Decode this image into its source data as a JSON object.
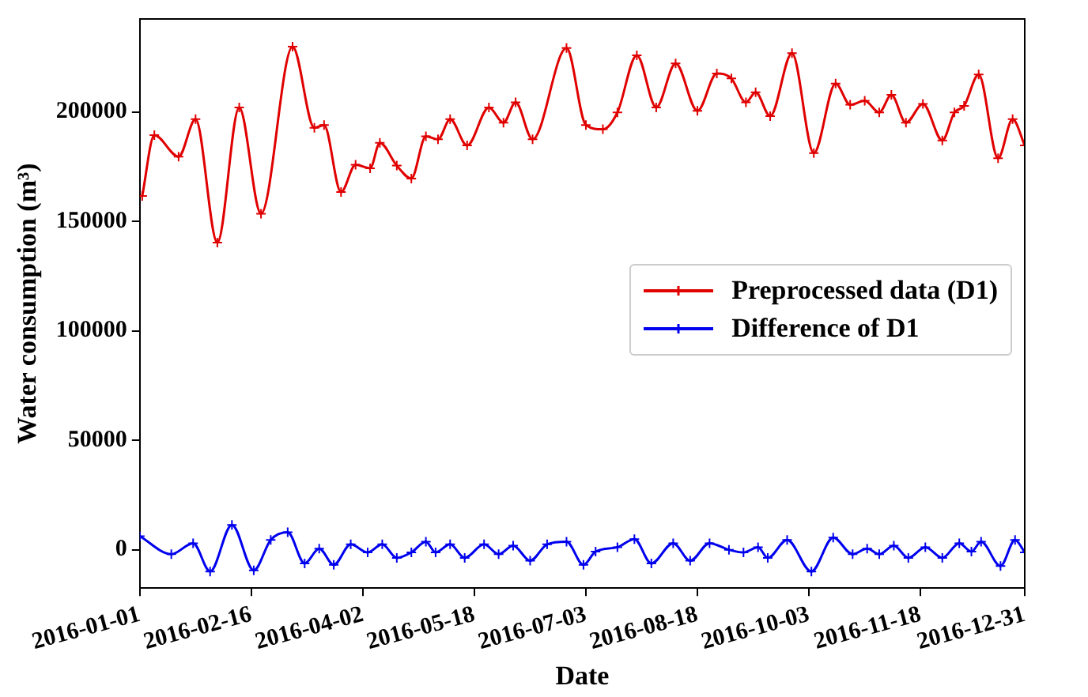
{
  "chart_data": {
    "type": "line",
    "xlabel": "Date",
    "ylabel": "Water consumption (m³)",
    "xlim": [
      "2016-01-01",
      "2016-12-31"
    ],
    "xticks": [
      "2016-01-01",
      "2016-02-16",
      "2016-04-02",
      "2016-05-18",
      "2016-07-03",
      "2016-08-18",
      "2016-10-03",
      "2016-11-18",
      "2016-12-31"
    ],
    "ylim": [
      -17500,
      242500
    ],
    "yticks": [
      0,
      50000,
      100000,
      150000,
      200000
    ],
    "grid": false,
    "legend": "center right",
    "marker": "cross",
    "line_style": "solid",
    "series": [
      {
        "name": "Preprocessed data (D1)",
        "color": "#e00000",
        "x": [
          "2016-01-02",
          "2016-01-07",
          "2016-01-17",
          "2016-01-24",
          "2016-02-02",
          "2016-02-11",
          "2016-02-20",
          "2016-03-04",
          "2016-03-13",
          "2016-03-17",
          "2016-03-24",
          "2016-03-30",
          "2016-04-05",
          "2016-04-09",
          "2016-04-16",
          "2016-04-22",
          "2016-04-28",
          "2016-05-03",
          "2016-05-08",
          "2016-05-15",
          "2016-05-24",
          "2016-05-30",
          "2016-06-04",
          "2016-06-11",
          "2016-06-25",
          "2016-07-03",
          "2016-07-10",
          "2016-07-16",
          "2016-07-24",
          "2016-08-01",
          "2016-08-09",
          "2016-08-18",
          "2016-08-26",
          "2016-09-01",
          "2016-09-07",
          "2016-09-11",
          "2016-09-17",
          "2016-09-26",
          "2016-10-05",
          "2016-10-14",
          "2016-10-20",
          "2016-10-26",
          "2016-11-01",
          "2016-11-06",
          "2016-11-12",
          "2016-11-19",
          "2016-11-27",
          "2016-12-02",
          "2016-12-06",
          "2016-12-12",
          "2016-12-20",
          "2016-12-26",
          "2016-12-31"
        ],
        "values": [
          161600,
          189400,
          179600,
          196700,
          140300,
          202100,
          153500,
          229900,
          192800,
          194000,
          163400,
          175900,
          174300,
          185900,
          175500,
          169600,
          188900,
          187500,
          196700,
          184700,
          202100,
          195100,
          204400,
          187500,
          229200,
          194000,
          192100,
          199800,
          225900,
          202100,
          222200,
          200500,
          217600,
          215300,
          204400,
          209000,
          198100,
          226900,
          181200,
          213000,
          203300,
          205100,
          199800,
          207800,
          195100,
          203700,
          187000,
          199800,
          202800,
          217100,
          178900,
          196700,
          184700
        ]
      },
      {
        "name": "Difference of D1",
        "color": "#0000ee",
        "x": [
          "2016-01-01",
          "2016-01-14",
          "2016-01-23",
          "2016-01-30",
          "2016-02-08",
          "2016-02-17",
          "2016-02-24",
          "2016-03-02",
          "2016-03-09",
          "2016-03-15",
          "2016-03-21",
          "2016-03-28",
          "2016-04-04",
          "2016-04-10",
          "2016-04-16",
          "2016-04-22",
          "2016-04-28",
          "2016-05-02",
          "2016-05-08",
          "2016-05-14",
          "2016-05-22",
          "2016-05-28",
          "2016-06-03",
          "2016-06-10",
          "2016-06-17",
          "2016-06-25",
          "2016-07-02",
          "2016-07-07",
          "2016-07-16",
          "2016-07-23",
          "2016-07-30",
          "2016-08-08",
          "2016-08-15",
          "2016-08-23",
          "2016-08-31",
          "2016-09-06",
          "2016-09-12",
          "2016-09-16",
          "2016-09-24",
          "2016-10-04",
          "2016-10-13",
          "2016-10-21",
          "2016-10-27",
          "2016-11-01",
          "2016-11-07",
          "2016-11-13",
          "2016-11-20",
          "2016-11-27",
          "2016-12-04",
          "2016-12-09",
          "2016-12-13",
          "2016-12-21",
          "2016-12-27",
          "2016-12-31"
        ],
        "values": [
          6200,
          -2000,
          3000,
          -9900,
          11400,
          -9400,
          4500,
          8000,
          -6200,
          500,
          -6900,
          2500,
          -1200,
          2500,
          -3700,
          -1200,
          3700,
          -1200,
          2500,
          -3700,
          2500,
          -2000,
          1900,
          -5000,
          2500,
          3700,
          -6900,
          -800,
          1200,
          4900,
          -6200,
          3000,
          -5000,
          3000,
          0,
          -1200,
          1200,
          -3700,
          4500,
          -9900,
          5600,
          -2000,
          500,
          -2000,
          1900,
          -3700,
          1200,
          -3700,
          3000,
          -800,
          3700,
          -7400,
          4500,
          -1200
        ]
      }
    ]
  }
}
